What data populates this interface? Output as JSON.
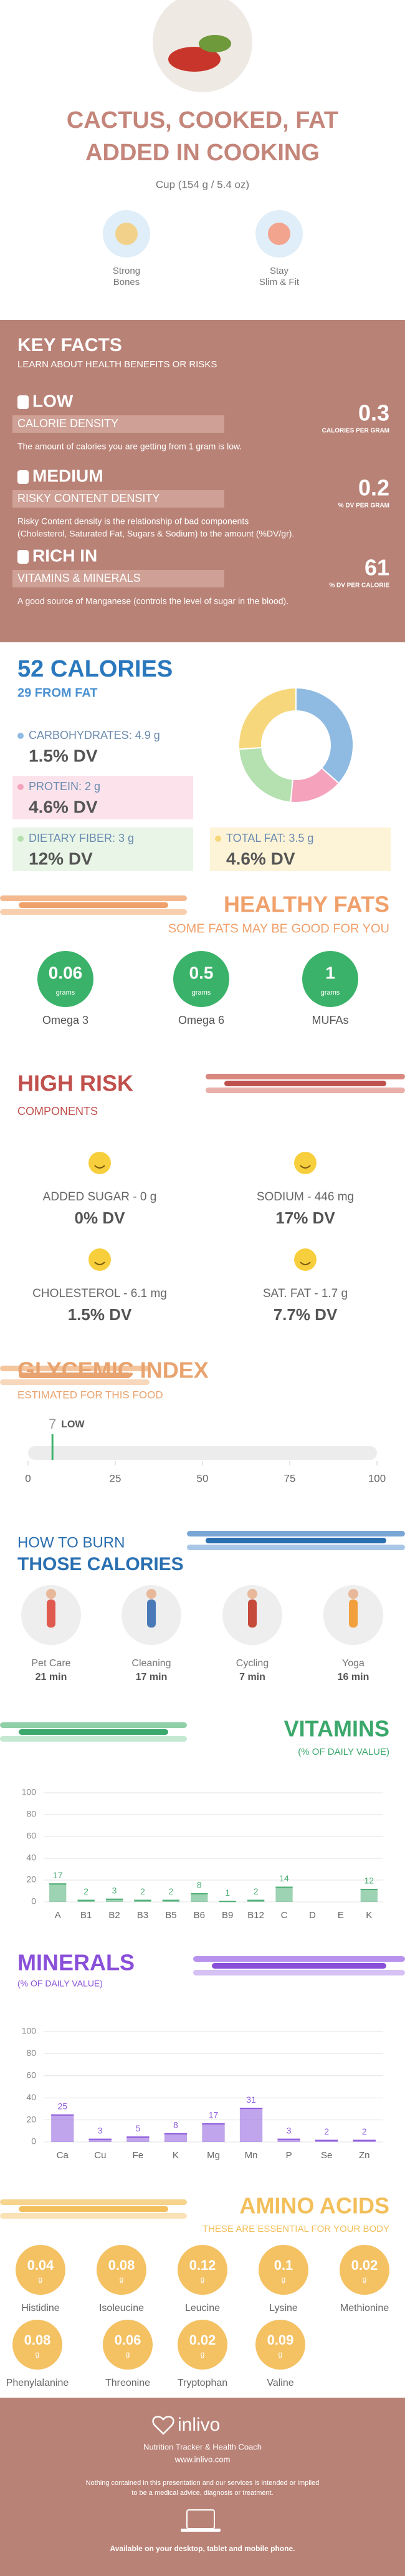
{
  "header": {
    "title_lines": [
      "CACTUS, COOKED, FAT",
      "ADDED IN COOKING"
    ],
    "serving": "Cup (154 g / 5.4 oz)",
    "benefits": [
      {
        "lines": [
          "Strong",
          "Bones"
        ]
      },
      {
        "lines": [
          "Stay",
          "Slim & Fit"
        ]
      }
    ]
  },
  "key_facts": {
    "title": "KEY FACTS",
    "subtitle": "LEARN ABOUT HEALTH BENEFITS OR RISKS",
    "facts": [
      {
        "level": "LOW",
        "name": "CALORIE DENSITY",
        "value": 0.3,
        "unit": "CALORIES PER GRAM",
        "desc": [
          "The amount of calories you are getting from 1 gram is low."
        ]
      },
      {
        "level": "MEDIUM",
        "name": "RISKY CONTENT DENSITY",
        "value": 0.2,
        "unit": "% DV PER GRAM",
        "desc": [
          "Risky Content density is the relationship of bad components",
          "(Cholesterol, Saturated Fat, Sugars & Sodium) to the amount (%DV/gr)."
        ]
      },
      {
        "level": "RICH  IN",
        "name": "VITAMINS & MINERALS",
        "value": 61,
        "unit": "% DV PER CALORIE",
        "desc": [
          "A good source of Manganese (controls the level of sugar in the blood)."
        ]
      }
    ]
  },
  "calories": {
    "title": "52 CALORIES",
    "subtitle": "29 FROM FAT",
    "nutrients": [
      {
        "label": "CARBOHYDRATES: 4.9 g",
        "grams": 4.9,
        "dv": "1.5% DV",
        "color": "#8fbbe2"
      },
      {
        "label": "PROTEIN: 2 g",
        "grams": 2,
        "dv": "4.6% DV",
        "color": "#f5a3bd"
      },
      {
        "label": "DIETARY FIBER: 3 g",
        "grams": 3,
        "dv": "12% DV",
        "color": "#b5e0b0"
      },
      {
        "label": "TOTAL FAT: 3.5 g",
        "grams": 3.5,
        "dv": "4.6% DV",
        "color": "#f7d77c"
      }
    ]
  },
  "healthy_fats": {
    "title": "HEALTHY FATS",
    "subtitle": "SOME FATS MAY BE GOOD FOR YOU",
    "unit": "grams",
    "items": [
      {
        "name": "Omega 3",
        "value": 0.06
      },
      {
        "name": "Omega 6",
        "value": 0.5
      },
      {
        "name": "MUFAs",
        "value": 1
      }
    ]
  },
  "high_risk": {
    "title": "HIGH RISK",
    "subtitle": "COMPONENTS",
    "items": [
      {
        "name": "ADDED SUGAR - 0 g",
        "dv": "0% DV"
      },
      {
        "name": "SODIUM - 446 mg",
        "dv": "17% DV"
      },
      {
        "name": "CHOLESTEROL - 6.1 mg",
        "dv": "1.5% DV"
      },
      {
        "name": "SAT. FAT - 1.7 g",
        "dv": "7.7% DV"
      }
    ]
  },
  "glycemic_index": {
    "title": "GLYCEMIC INDEX",
    "subtitle": "ESTIMATED FOR THIS FOOD",
    "value": 7,
    "level": "LOW",
    "xlim": [
      0,
      100
    ],
    "xticks": [
      0,
      25,
      50,
      75,
      100
    ]
  },
  "burn": {
    "title_top": "HOW TO BURN",
    "title": "THOSE CALORIES",
    "activities": [
      {
        "name": "Pet Care",
        "time": "21 min"
      },
      {
        "name": "Cleaning",
        "time": "17 min"
      },
      {
        "name": "Cycling",
        "time": "7 min"
      },
      {
        "name": "Yoga",
        "time": "16 min"
      }
    ]
  },
  "vitamins": {
    "type": "bar",
    "title": "VITAMINS",
    "subtitle": "(% OF DAILY VALUE)",
    "categories": [
      "A",
      "B1",
      "B2",
      "B3",
      "B5",
      "B6",
      "B9",
      "B12",
      "C",
      "D",
      "E",
      "K"
    ],
    "values": [
      17,
      2,
      3,
      2,
      2,
      8,
      1,
      2,
      14,
      null,
      null,
      12
    ],
    "color": "#4cae74",
    "ylim": [
      0,
      100
    ],
    "yticks": [
      0,
      20,
      40,
      60,
      80,
      100
    ],
    "grid": true
  },
  "minerals": {
    "type": "bar",
    "title": "MINERALS",
    "subtitle": "(% OF DAILY VALUE)",
    "categories": [
      "Ca",
      "Cu",
      "Fe",
      "K",
      "Mg",
      "Mn",
      "P",
      "Se",
      "Zn"
    ],
    "values": [
      25,
      3,
      5,
      8,
      17,
      31,
      3,
      2,
      2
    ],
    "color": "#8d5bdc",
    "ylim": [
      0,
      100
    ],
    "yticks": [
      0,
      20,
      40,
      60,
      80,
      100
    ],
    "grid": true
  },
  "amino_acids": {
    "title": "AMINO ACIDS",
    "subtitle": "THESE ARE ESSENTIAL FOR YOUR BODY",
    "unit": "g",
    "items": [
      {
        "name": "Histidine",
        "value": 0.04
      },
      {
        "name": "Isoleucine",
        "value": 0.08
      },
      {
        "name": "Leucine",
        "value": 0.12
      },
      {
        "name": "Lysine",
        "value": 0.1
      },
      {
        "name": "Methionine",
        "value": 0.02
      },
      {
        "name": "Phenylalanine",
        "value": 0.08
      },
      {
        "name": "Threonine",
        "value": 0.06
      },
      {
        "name": "Tryptophan",
        "value": 0.02
      },
      {
        "name": "Valine",
        "value": 0.09
      }
    ]
  },
  "footer": {
    "brand": "inlivo",
    "tagline": "Nutrition Tracker & Health Coach",
    "url": "www.inlivo.com",
    "disclaimer": [
      "Nothing contained in this presentation and our services is intended or implied",
      "to be a medical advice, diagnosis or treatment."
    ],
    "available": "Available on your desktop, tablet and mobile phone."
  }
}
